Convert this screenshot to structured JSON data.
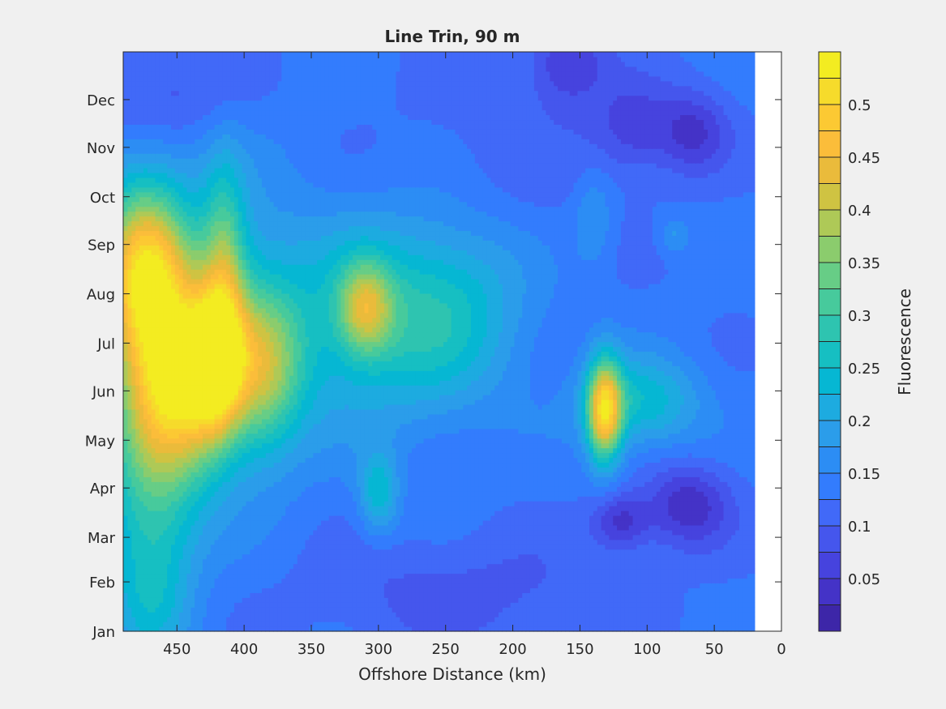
{
  "chart_data": {
    "type": "heatmap",
    "title": "Line Trin, 90 m",
    "xlabel": "Offshore Distance (km)",
    "ylabel": "",
    "xlim": [
      0,
      490
    ],
    "x_reversed": true,
    "ylim_months": [
      "Jan",
      "Dec"
    ],
    "x_ticks": [
      450,
      400,
      350,
      300,
      250,
      200,
      150,
      100,
      50,
      0
    ],
    "y_ticks": [
      "Jan",
      "Feb",
      "Mar",
      "Apr",
      "May",
      "Jun",
      "Jul",
      "Aug",
      "Sep",
      "Oct",
      "Nov",
      "Dec"
    ],
    "y_tick_days": [
      1,
      32,
      60,
      91,
      121,
      152,
      182,
      213,
      244,
      274,
      305,
      335
    ],
    "y_range_days": [
      1,
      365
    ],
    "data_x_range_km": [
      20,
      490
    ],
    "colorbar": {
      "label": "Fluorescence",
      "range": [
        0,
        0.55
      ],
      "levels": [
        0,
        0.025,
        0.05,
        0.075,
        0.1,
        0.125,
        0.15,
        0.175,
        0.2,
        0.225,
        0.25,
        0.275,
        0.3,
        0.325,
        0.35,
        0.375,
        0.4,
        0.425,
        0.45,
        0.475,
        0.5,
        0.525,
        0.55
      ],
      "ticks": [
        "0.05",
        "0.1",
        "0.15",
        "0.2",
        "0.25",
        "0.3",
        "0.35",
        "0.4",
        "0.45",
        "0.5"
      ],
      "tick_values": [
        0.05,
        0.1,
        0.15,
        0.2,
        0.25,
        0.3,
        0.35,
        0.4,
        0.45,
        0.5
      ],
      "colors": [
        "#3d26a8",
        "#4433c7",
        "#4643de",
        "#4556ed",
        "#4169f8",
        "#337cfd",
        "#2c8df4",
        "#2b9dea",
        "#1dabe0",
        "#06b7d3",
        "#16bfc2",
        "#2ec4b0",
        "#47ca9c",
        "#67cd86",
        "#8bcc6d",
        "#aec957",
        "#cfc342",
        "#eabb3b",
        "#fbbd3a",
        "#fcc933",
        "#f6db2b",
        "#f3ec21"
      ]
    },
    "base_value": 0.13,
    "features": [
      {
        "x_km": 475,
        "day": 228,
        "sx_km": 22,
        "sy_days": 38,
        "amp": 0.3
      },
      {
        "x_km": 450,
        "day": 160,
        "sx_km": 28,
        "sy_days": 40,
        "amp": 0.31
      },
      {
        "x_km": 422,
        "day": 170,
        "sx_km": 14,
        "sy_days": 30,
        "amp": 0.24
      },
      {
        "x_km": 415,
        "day": 230,
        "sx_km": 11,
        "sy_days": 45,
        "amp": 0.15
      },
      {
        "x_km": 385,
        "day": 165,
        "sx_km": 20,
        "sy_days": 35,
        "amp": 0.18
      },
      {
        "x_km": 440,
        "day": 195,
        "sx_km": 55,
        "sy_days": 70,
        "amp": 0.1
      },
      {
        "x_km": 470,
        "day": 80,
        "sx_km": 25,
        "sy_days": 50,
        "amp": 0.12
      },
      {
        "x_km": 310,
        "day": 205,
        "sx_km": 14,
        "sy_days": 20,
        "amp": 0.19
      },
      {
        "x_km": 305,
        "day": 195,
        "sx_km": 55,
        "sy_days": 45,
        "amp": 0.11
      },
      {
        "x_km": 245,
        "day": 205,
        "sx_km": 40,
        "sy_days": 40,
        "amp": 0.08
      },
      {
        "x_km": 300,
        "day": 88,
        "sx_km": 10,
        "sy_days": 18,
        "amp": 0.11
      },
      {
        "x_km": 132,
        "day": 140,
        "sx_km": 9,
        "sy_days": 22,
        "amp": 0.34
      },
      {
        "x_km": 105,
        "day": 145,
        "sx_km": 30,
        "sy_days": 20,
        "amp": 0.12
      },
      {
        "x_km": 120,
        "day": 70,
        "sx_km": 15,
        "sy_days": 12,
        "amp": -0.09
      },
      {
        "x_km": 70,
        "day": 80,
        "sx_km": 22,
        "sy_days": 18,
        "amp": -0.1
      },
      {
        "x_km": 110,
        "day": 318,
        "sx_km": 22,
        "sy_days": 20,
        "amp": -0.07
      },
      {
        "x_km": 65,
        "day": 315,
        "sx_km": 18,
        "sy_days": 18,
        "amp": -0.08
      },
      {
        "x_km": 160,
        "day": 360,
        "sx_km": 20,
        "sy_days": 20,
        "amp": -0.08
      },
      {
        "x_km": 460,
        "day": 338,
        "sx_km": 40,
        "sy_days": 22,
        "amp": -0.05
      },
      {
        "x_km": 240,
        "day": 25,
        "sx_km": 80,
        "sy_days": 25,
        "amp": -0.04
      },
      {
        "x_km": 470,
        "day": 20,
        "sx_km": 20,
        "sy_days": 30,
        "amp": 0.06
      },
      {
        "x_km": 210,
        "day": 300,
        "sx_km": 60,
        "sy_days": 40,
        "amp": -0.02
      },
      {
        "x_km": 140,
        "day": 260,
        "sx_km": 10,
        "sy_days": 20,
        "amp": 0.05
      },
      {
        "x_km": 80,
        "day": 250,
        "sx_km": 8,
        "sy_days": 8,
        "amp": 0.05
      }
    ]
  }
}
